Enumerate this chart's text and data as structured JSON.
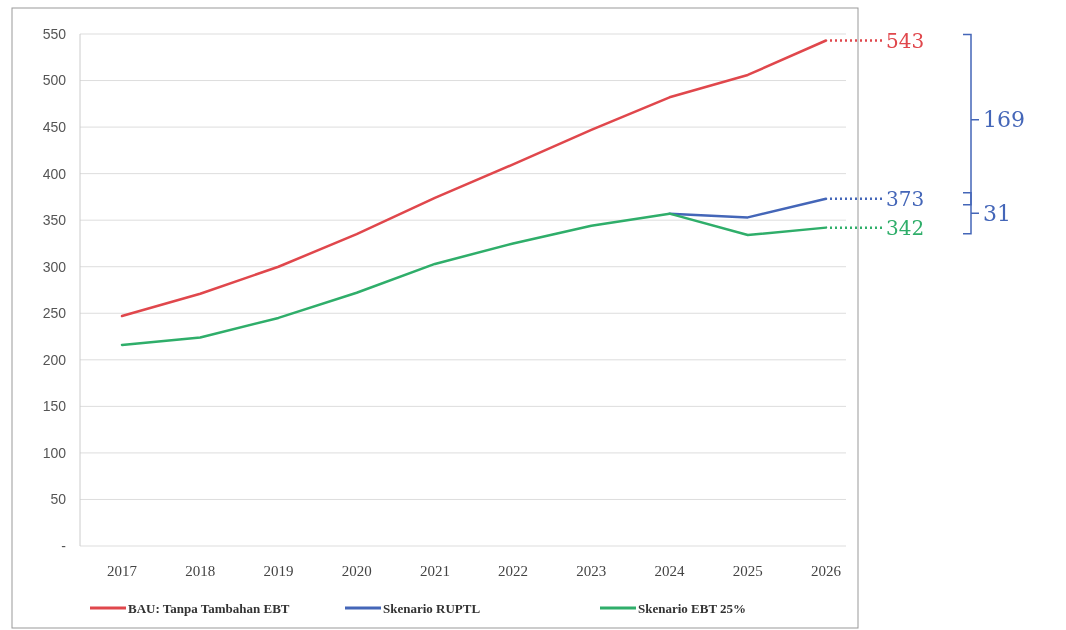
{
  "chart_data": {
    "type": "line",
    "categories": [
      "2017",
      "2018",
      "2019",
      "2020",
      "2021",
      "2022",
      "2023",
      "2024",
      "2025",
      "2026"
    ],
    "series": [
      {
        "name": "BAU: Tanpa Tambahan EBT",
        "color": "#e0474c",
        "values": [
          247,
          271,
          300,
          335,
          374,
          410,
          447,
          482,
          506,
          543
        ],
        "value_labels": [
          null,
          null,
          null,
          null,
          null,
          null,
          null,
          null,
          null,
          "543"
        ]
      },
      {
        "name": "Skenario RUPTL",
        "color": "#4466b8",
        "values": [
          null,
          null,
          null,
          null,
          null,
          null,
          null,
          357,
          353,
          373
        ],
        "value_labels": [
          null,
          null,
          null,
          null,
          null,
          null,
          null,
          null,
          null,
          "373"
        ]
      },
      {
        "name": "Skenario EBT 25%",
        "color": "#2fae6a",
        "values": [
          216,
          224,
          245,
          272,
          303,
          325,
          344,
          357,
          334,
          342
        ],
        "value_labels": [
          null,
          null,
          null,
          null,
          null,
          null,
          null,
          null,
          null,
          "342"
        ]
      }
    ],
    "ylim": [
      0,
      550
    ],
    "yticks": [
      {
        "value": 0,
        "label": "-"
      },
      50,
      100,
      150,
      200,
      250,
      300,
      350,
      400,
      450,
      500,
      550
    ],
    "grid": "y",
    "legend": "bottom",
    "marker": "none",
    "line_style": "solid",
    "annotations": [
      "169",
      "31"
    ]
  }
}
